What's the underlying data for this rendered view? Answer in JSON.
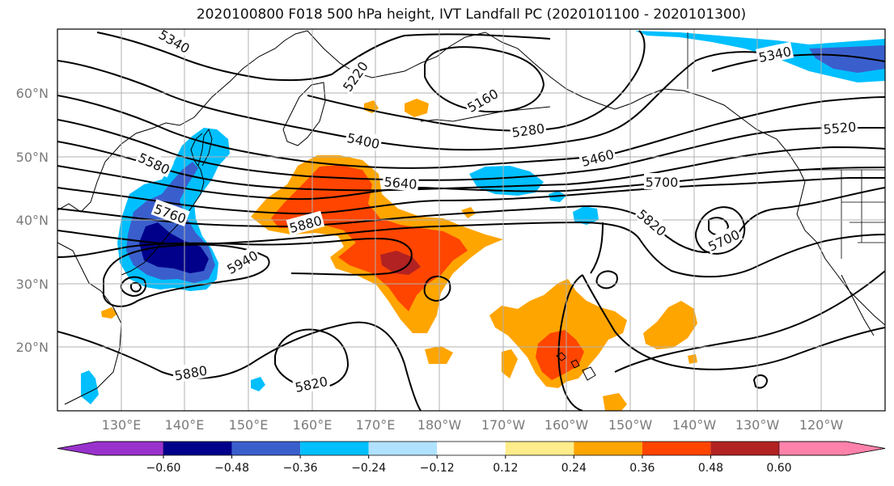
{
  "title": "2020100800 F018 500 hPa height, IVT Landfall PC (2020101100 - 2020101300)",
  "lat_ticks": [
    "60°N",
    "50°N",
    "40°N",
    "30°N",
    "20°N"
  ],
  "lon_ticks": [
    "130°E",
    "140°E",
    "150°E",
    "160°E",
    "170°E",
    "180°W",
    "170°W",
    "160°W",
    "150°W",
    "140°W",
    "130°W",
    "120°W"
  ],
  "contour_labels": [
    "5340",
    "5220",
    "5160",
    "5280",
    "5400",
    "5460",
    "5520",
    "5340",
    "5580",
    "5640",
    "5700",
    "5760",
    "5820",
    "5700",
    "5880",
    "5940",
    "5880",
    "5820"
  ],
  "colorbar": {
    "labels": [
      "−0.60",
      "−0.48",
      "−0.36",
      "−0.24",
      "−0.12",
      "0.12",
      "0.24",
      "0.36",
      "0.48",
      "0.60"
    ],
    "colors": [
      "#9932cc",
      "#00008b",
      "#3a5fcd",
      "#00bfff",
      "#b0e2ff",
      "#ffffff",
      "#ffec8b",
      "#ffa500",
      "#ff4500",
      "#b22222",
      "#ff82ab"
    ]
  },
  "colors": {
    "land_outline": "#000000",
    "grid": "#b0b0b0"
  }
}
